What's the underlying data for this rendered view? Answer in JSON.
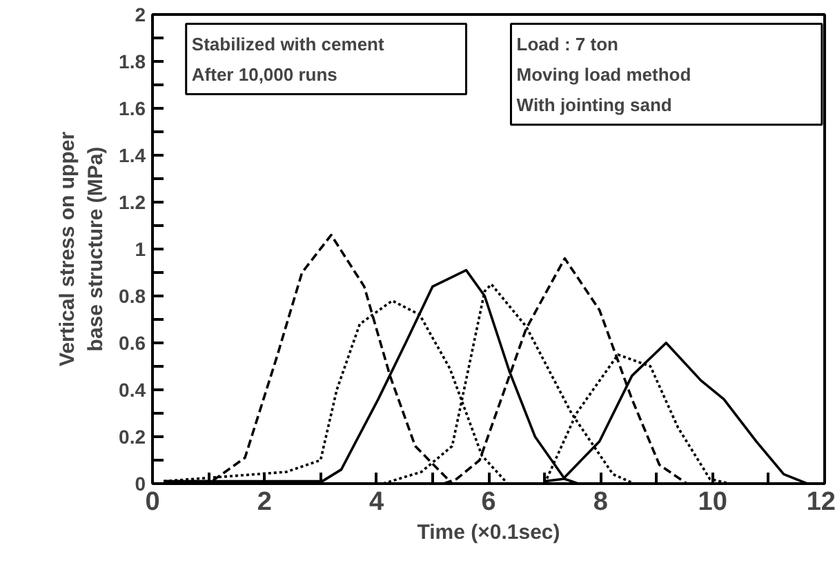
{
  "chart_data": {
    "type": "line",
    "xlabel": "Time (×0.1sec)",
    "ylabel": "Vertical stress on upper\nbase structure (MPa)",
    "annotations": [
      "Stabilized with cement",
      "After 10,000 runs",
      "Load : 7 ton",
      "Moving load method",
      "With jointing sand"
    ],
    "xlim": [
      0,
      12
    ],
    "ylim": [
      0,
      2
    ],
    "xticks": [
      0,
      {
        "value": 1,
        "label": null
      },
      2,
      {
        "value": 3,
        "label": null
      },
      4,
      {
        "value": 5,
        "label": null
      },
      6,
      {
        "value": 7,
        "label": null
      },
      8,
      {
        "value": 9,
        "label": null
      },
      10,
      {
        "value": 11,
        "label": null
      },
      12
    ],
    "yticks": [
      0,
      {
        "value": 0.1,
        "label": null
      },
      0.2,
      {
        "value": 0.3,
        "label": null
      },
      0.4,
      {
        "value": 0.5,
        "label": null
      },
      0.6,
      {
        "value": 0.7,
        "label": null
      },
      0.8,
      {
        "value": 0.9,
        "label": null
      },
      1,
      {
        "value": 1.1,
        "label": null
      },
      1.2,
      {
        "value": 1.3,
        "label": null
      },
      1.4,
      {
        "value": 1.5,
        "label": null
      },
      1.6,
      {
        "value": 1.7,
        "label": null
      },
      1.8,
      {
        "value": 1.9,
        "label": null
      },
      2
    ],
    "grid": false,
    "series": [
      {
        "color": "#000000",
        "line_style": "dashed",
        "x": [
          0.2,
          1.06,
          1.65,
          2.22,
          2.67,
          3.19,
          3.78,
          4.24,
          4.69,
          5.35
        ],
        "values": [
          0.01,
          0.01,
          0.11,
          0.54,
          0.9,
          1.06,
          0.84,
          0.46,
          0.16,
          0.0
        ]
      },
      {
        "color": "#000000",
        "line_style": "dotted",
        "x": [
          0.2,
          2.39,
          3.0,
          3.29,
          3.7,
          4.28,
          4.77,
          5.31,
          5.88,
          6.34
        ],
        "values": [
          0.01,
          0.05,
          0.1,
          0.4,
          0.68,
          0.78,
          0.72,
          0.49,
          0.12,
          0.0
        ]
      },
      {
        "color": "#000000",
        "line_style": "solid",
        "x": [
          0.2,
          3.03,
          3.37,
          4.03,
          4.52,
          5.0,
          5.6,
          5.93,
          6.37,
          6.83,
          7.36,
          7.6
        ],
        "values": [
          0.01,
          0.01,
          0.06,
          0.36,
          0.6,
          0.84,
          0.91,
          0.8,
          0.48,
          0.2,
          0.02,
          0.0
        ]
      },
      {
        "color": "#000000",
        "line_style": "dotted",
        "x": [
          4.12,
          4.8,
          5.35,
          5.65,
          5.93,
          6.05,
          6.67,
          7.48,
          8.22,
          8.6
        ],
        "values": [
          0.0,
          0.05,
          0.16,
          0.5,
          0.82,
          0.85,
          0.67,
          0.3,
          0.04,
          0.0
        ]
      },
      {
        "color": "#000000",
        "line_style": "dashed",
        "x": [
          5.2,
          5.43,
          5.84,
          6.67,
          7.36,
          7.98,
          8.56,
          9.05,
          9.54
        ],
        "values": [
          0.0,
          0.02,
          0.1,
          0.66,
          0.96,
          0.74,
          0.36,
          0.08,
          0.0
        ]
      },
      {
        "color": "#000000",
        "line_style": "dotted",
        "x": [
          7.0,
          7.57,
          8.31,
          8.89,
          9.38,
          9.95,
          10.3
        ],
        "values": [
          0.0,
          0.3,
          0.55,
          0.5,
          0.24,
          0.02,
          0.0
        ]
      },
      {
        "color": "#000000",
        "line_style": "solid",
        "x": [
          7.0,
          7.33,
          7.98,
          8.56,
          9.17,
          9.79,
          10.2,
          10.78,
          11.27,
          11.69,
          12.0
        ],
        "values": [
          0.01,
          0.02,
          0.18,
          0.46,
          0.6,
          0.44,
          0.36,
          0.18,
          0.04,
          0.0,
          0.0
        ]
      }
    ]
  }
}
